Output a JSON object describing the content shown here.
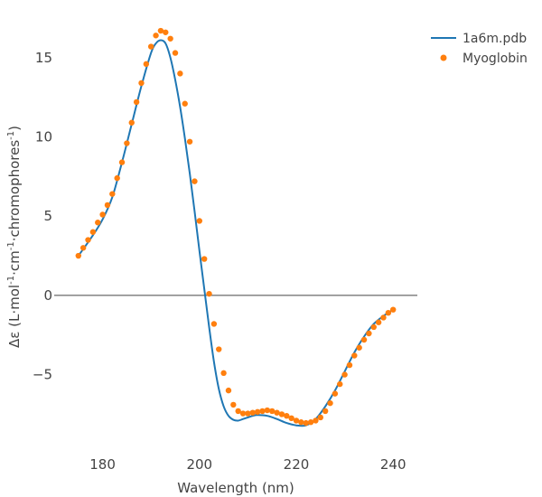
{
  "chart_data": {
    "type": "line",
    "title": "",
    "xlabel": "Wavelength (nm)",
    "ylabel": {
      "prefix": "Δε (L·mol",
      "sup1": "-1",
      "mid1": "·cm",
      "sup2": "-1",
      "mid2": "·chromophores",
      "sup3": "-1",
      "suffix": ")"
    },
    "xlim": [
      170,
      245
    ],
    "ylim": [
      -9.3,
      17.5
    ],
    "x_ticks": [
      180,
      200,
      220,
      240
    ],
    "x_tick_labels": [
      "180",
      "200",
      "220",
      "240"
    ],
    "y_ticks": [
      -5,
      0,
      5,
      10,
      15
    ],
    "y_tick_labels": [
      "−5",
      "0",
      "5",
      "10",
      "15"
    ],
    "zero_line": true,
    "legend_position": "top-right",
    "series": [
      {
        "name": "1a6m.pdb",
        "mode": "line",
        "color": "#1f77b4",
        "x": [
          175,
          178,
          180,
          182,
          184,
          186,
          188,
          190,
          191,
          192,
          193,
          194,
          195,
          196,
          197,
          198,
          199,
          200,
          201,
          202,
          203,
          204,
          205,
          206,
          207,
          208,
          209,
          210,
          211,
          212,
          214,
          216,
          218,
          220,
          222,
          224,
          226,
          228,
          230,
          232,
          234,
          236,
          238,
          240
        ],
        "y": [
          2.5,
          3.8,
          4.8,
          6.2,
          8.4,
          10.8,
          13.2,
          15.3,
          15.9,
          16.1,
          15.9,
          15.0,
          13.6,
          11.9,
          9.9,
          7.7,
          5.3,
          2.8,
          0.4,
          -2.0,
          -4.2,
          -5.9,
          -7.0,
          -7.6,
          -7.85,
          -7.9,
          -7.8,
          -7.7,
          -7.6,
          -7.55,
          -7.6,
          -7.8,
          -8.05,
          -8.2,
          -8.2,
          -7.8,
          -7.0,
          -6.0,
          -4.8,
          -3.6,
          -2.6,
          -1.8,
          -1.3,
          -0.9
        ]
      },
      {
        "name": "Myoglobin",
        "mode": "markers",
        "color": "#ff7f0e",
        "x": [
          175,
          176,
          177,
          178,
          179,
          180,
          181,
          182,
          183,
          184,
          185,
          186,
          187,
          188,
          189,
          190,
          191,
          192,
          193,
          194,
          195,
          196,
          197,
          198,
          199,
          200,
          201,
          202,
          203,
          204,
          205,
          206,
          207,
          208,
          209,
          210,
          211,
          212,
          213,
          214,
          215,
          216,
          217,
          218,
          219,
          220,
          221,
          222,
          223,
          224,
          225,
          226,
          227,
          228,
          229,
          230,
          231,
          232,
          233,
          234,
          235,
          236,
          237,
          238,
          239,
          240
        ],
        "y": [
          2.5,
          3.0,
          3.5,
          4.0,
          4.6,
          5.1,
          5.7,
          6.4,
          7.4,
          8.4,
          9.6,
          10.9,
          12.2,
          13.4,
          14.6,
          15.7,
          16.4,
          16.7,
          16.6,
          16.2,
          15.3,
          14.0,
          12.1,
          9.7,
          7.2,
          4.7,
          2.3,
          0.1,
          -1.8,
          -3.4,
          -4.9,
          -6.0,
          -6.9,
          -7.3,
          -7.45,
          -7.45,
          -7.4,
          -7.35,
          -7.3,
          -7.25,
          -7.3,
          -7.4,
          -7.5,
          -7.6,
          -7.75,
          -7.9,
          -8.0,
          -8.05,
          -8.0,
          -7.9,
          -7.7,
          -7.3,
          -6.8,
          -6.2,
          -5.6,
          -5.0,
          -4.4,
          -3.8,
          -3.3,
          -2.8,
          -2.4,
          -2.0,
          -1.7,
          -1.4,
          -1.1,
          -0.9
        ]
      }
    ]
  }
}
